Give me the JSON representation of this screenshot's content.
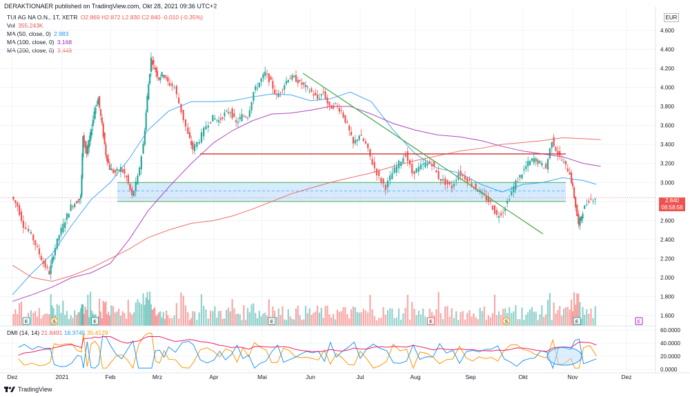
{
  "header": {
    "publisher_line": "DERAKTIONAER published on TradingView.com, Okt 28, 2021 09:36 UTC+2",
    "symbol": "TUI AG NA O.N., 1T, XETR",
    "ohlc": "O2.869  H2.872  L2.830  C2.840  -0.010 (-0.35%)",
    "vol_label": "Vol",
    "vol_value": "355.243K",
    "ma50_label": "MA (50, close, 0)",
    "ma50_value": "2.983",
    "ma100_label": "MA (100, close, 0)",
    "ma100_value": "3.168",
    "ma200_label": "MA (200, close, 0)",
    "ma200_value": "3.449"
  },
  "currency": "EUR",
  "last_price": "2.840",
  "countdown": "08:58:58",
  "dmi": {
    "label": "DMI (14, 14)",
    "plus_di": "21.8491",
    "minus_di": "18.3745",
    "adx": "35.4129"
  },
  "footer": {
    "brand": "TradingView"
  },
  "colors": {
    "up": "#26a69a",
    "down": "#ef5350",
    "ma50": "#2196f3",
    "ma100": "#9c27b0",
    "ma200": "#ef5350",
    "zone": "#bbdefb",
    "trendline": "#4caf50",
    "resistance": "#d32f2f"
  },
  "chart_data": {
    "type": "candlestick",
    "x_tick_labels": [
      "Dez",
      "2021",
      "Feb",
      "Mrz",
      "Apr",
      "Mai",
      "Jun",
      "Jul",
      "Aug",
      "Sep",
      "Okt",
      "Nov",
      "Dez"
    ],
    "y_tick_labels": [
      "4.600",
      "4.400",
      "4.200",
      "4.000",
      "3.800",
      "3.600",
      "3.400",
      "3.200",
      "3.000",
      "2.800",
      "2.600",
      "2.400",
      "2.200",
      "2.000",
      "1.800",
      "1.600"
    ],
    "dmi_tick_labels": [
      "60.0000",
      "40.0000",
      "20.0000",
      "0.0000"
    ],
    "ylim": [
      1.55,
      4.65
    ],
    "dmi_ylim": [
      0,
      60
    ],
    "event_markers": [
      {
        "label": "E",
        "month_index": 0.7
      },
      {
        "label": "S",
        "month_index": 2.1
      },
      {
        "label": "E",
        "month_index": 4.2
      },
      {
        "label": "E",
        "month_index": 13.0
      },
      {
        "label": "E",
        "month_index": 20.7
      },
      {
        "label": "S",
        "month_index": 24.2
      },
      {
        "label": "E",
        "month_index": 27.7
      }
    ],
    "horizontal_resistance": 3.3,
    "support_zone": [
      2.8,
      3.0
    ],
    "support_zone_midline": 2.91,
    "trendline": {
      "start": {
        "month_index": 14.6,
        "price": 4.15
      },
      "end": {
        "month_index": 26.0,
        "price": 2.46
      }
    },
    "ma_series": {
      "ma50": [
        [
          0,
          1.82
        ],
        [
          1,
          2.05
        ],
        [
          2,
          2.25
        ],
        [
          3,
          2.55
        ],
        [
          4,
          2.82
        ],
        [
          5,
          3.0
        ],
        [
          6,
          3.25
        ],
        [
          7,
          3.55
        ],
        [
          8,
          3.75
        ],
        [
          9,
          3.85
        ],
        [
          10,
          3.85
        ],
        [
          11,
          3.86
        ],
        [
          12,
          3.9
        ],
        [
          13,
          3.93
        ],
        [
          14,
          3.92
        ],
        [
          15,
          3.86
        ],
        [
          16,
          3.88
        ],
        [
          17,
          3.95
        ],
        [
          18,
          3.85
        ],
        [
          19,
          3.55
        ],
        [
          20,
          3.3
        ],
        [
          21,
          3.15
        ],
        [
          22,
          3.1
        ],
        [
          23,
          2.98
        ],
        [
          24,
          2.9
        ],
        [
          25,
          2.98
        ],
        [
          26,
          3.0
        ],
        [
          27,
          3.05
        ],
        [
          28,
          3.02
        ],
        [
          28.6,
          2.98
        ]
      ],
      "ma100": [
        [
          0,
          1.75
        ],
        [
          1,
          1.82
        ],
        [
          2,
          1.9
        ],
        [
          3,
          2.0
        ],
        [
          4,
          2.05
        ],
        [
          5,
          2.15
        ],
        [
          6,
          2.4
        ],
        [
          7,
          2.7
        ],
        [
          8,
          2.95
        ],
        [
          9,
          3.2
        ],
        [
          10,
          3.42
        ],
        [
          11,
          3.55
        ],
        [
          12,
          3.65
        ],
        [
          13,
          3.72
        ],
        [
          14,
          3.73
        ],
        [
          15,
          3.76
        ],
        [
          16,
          3.8
        ],
        [
          17,
          3.8
        ],
        [
          18,
          3.72
        ],
        [
          19,
          3.62
        ],
        [
          20,
          3.55
        ],
        [
          21,
          3.5
        ],
        [
          22,
          3.48
        ],
        [
          23,
          3.44
        ],
        [
          24,
          3.38
        ],
        [
          25,
          3.33
        ],
        [
          26,
          3.3
        ],
        [
          27,
          3.27
        ],
        [
          28,
          3.2
        ],
        [
          28.8,
          3.17
        ]
      ],
      "ma200": [
        [
          0,
          2.13
        ],
        [
          1,
          2.0
        ],
        [
          2,
          1.96
        ],
        [
          3,
          2.02
        ],
        [
          4,
          2.1
        ],
        [
          5,
          2.2
        ],
        [
          6,
          2.3
        ],
        [
          7,
          2.42
        ],
        [
          8,
          2.5
        ],
        [
          9,
          2.57
        ],
        [
          10,
          2.6
        ],
        [
          11,
          2.65
        ],
        [
          12,
          2.72
        ],
        [
          13,
          2.8
        ],
        [
          14,
          2.88
        ],
        [
          15,
          2.94
        ],
        [
          16,
          3.0
        ],
        [
          17,
          3.05
        ],
        [
          18,
          3.1
        ],
        [
          19,
          3.17
        ],
        [
          20,
          3.23
        ],
        [
          21,
          3.28
        ],
        [
          22,
          3.33
        ],
        [
          23,
          3.36
        ],
        [
          24,
          3.4
        ],
        [
          25,
          3.42
        ],
        [
          26,
          3.44
        ],
        [
          27,
          3.47
        ],
        [
          28,
          3.46
        ],
        [
          28.8,
          3.45
        ]
      ]
    },
    "price_path": [
      [
        0,
        2.85
      ],
      [
        0.3,
        2.75
      ],
      [
        0.6,
        2.55
      ],
      [
        1.0,
        2.45
      ],
      [
        1.3,
        2.3
      ],
      [
        1.6,
        2.15
      ],
      [
        1.9,
        2.05
      ],
      [
        2.1,
        2.25
      ],
      [
        2.4,
        2.45
      ],
      [
        2.7,
        2.6
      ],
      [
        3.0,
        2.75
      ],
      [
        3.3,
        2.8
      ],
      [
        3.5,
        2.85
      ],
      [
        3.6,
        3.5
      ],
      [
        3.8,
        3.3
      ],
      [
        4.0,
        3.5
      ],
      [
        4.2,
        3.75
      ],
      [
        4.4,
        3.88
      ],
      [
        4.6,
        3.6
      ],
      [
        4.8,
        3.3
      ],
      [
        5.0,
        3.15
      ],
      [
        5.3,
        3.1
      ],
      [
        5.6,
        3.15
      ],
      [
        5.9,
        3.05
      ],
      [
        6.2,
        2.85
      ],
      [
        6.5,
        3.05
      ],
      [
        6.8,
        3.4
      ],
      [
        7.0,
        3.9
      ],
      [
        7.2,
        4.3
      ],
      [
        7.4,
        4.2
      ],
      [
        7.6,
        4.1
      ],
      [
        7.8,
        4.15
      ],
      [
        8.0,
        4.05
      ],
      [
        8.3,
        4.0
      ],
      [
        8.6,
        3.75
      ],
      [
        8.9,
        3.5
      ],
      [
        9.1,
        3.35
      ],
      [
        9.4,
        3.45
      ],
      [
        9.7,
        3.6
      ],
      [
        10.0,
        3.68
      ],
      [
        10.3,
        3.65
      ],
      [
        10.6,
        3.72
      ],
      [
        10.9,
        3.75
      ],
      [
        11.2,
        3.62
      ],
      [
        11.5,
        3.7
      ],
      [
        11.8,
        3.7
      ],
      [
        12.1,
        3.95
      ],
      [
        12.4,
        4.05
      ],
      [
        12.7,
        4.15
      ],
      [
        13.0,
        4.05
      ],
      [
        13.3,
        3.9
      ],
      [
        13.6,
        4.0
      ],
      [
        13.9,
        4.1
      ],
      [
        14.2,
        4.1
      ],
      [
        14.5,
        4.05
      ],
      [
        14.8,
        4.0
      ],
      [
        15.1,
        3.95
      ],
      [
        15.4,
        3.88
      ],
      [
        15.7,
        3.95
      ],
      [
        16.0,
        3.78
      ],
      [
        16.3,
        3.82
      ],
      [
        16.6,
        3.75
      ],
      [
        16.9,
        3.6
      ],
      [
        17.2,
        3.4
      ],
      [
        17.5,
        3.5
      ],
      [
        17.8,
        3.4
      ],
      [
        18.1,
        3.2
      ],
      [
        18.4,
        3.05
      ],
      [
        18.7,
        2.95
      ],
      [
        19.0,
        3.1
      ],
      [
        19.3,
        3.2
      ],
      [
        19.6,
        3.3
      ],
      [
        19.9,
        3.1
      ],
      [
        20.2,
        3.15
      ],
      [
        20.5,
        3.2
      ],
      [
        20.8,
        3.2
      ],
      [
        21.1,
        3.05
      ],
      [
        21.4,
        3.0
      ],
      [
        21.7,
        2.95
      ],
      [
        22.0,
        3.1
      ],
      [
        22.3,
        3.05
      ],
      [
        22.6,
        2.98
      ],
      [
        22.9,
        2.92
      ],
      [
        23.2,
        2.85
      ],
      [
        23.5,
        2.78
      ],
      [
        23.8,
        2.65
      ],
      [
        24.1,
        2.7
      ],
      [
        24.4,
        2.85
      ],
      [
        24.7,
        3.0
      ],
      [
        25.0,
        3.1
      ],
      [
        25.3,
        3.2
      ],
      [
        25.6,
        3.25
      ],
      [
        25.9,
        3.2
      ],
      [
        26.2,
        3.15
      ],
      [
        26.5,
        3.45
      ],
      [
        26.8,
        3.3
      ],
      [
        27.1,
        3.2
      ],
      [
        27.4,
        3.1
      ],
      [
        27.6,
        2.85
      ],
      [
        27.8,
        2.55
      ],
      [
        28.0,
        2.7
      ],
      [
        28.3,
        2.82
      ],
      [
        28.6,
        2.84
      ]
    ]
  }
}
